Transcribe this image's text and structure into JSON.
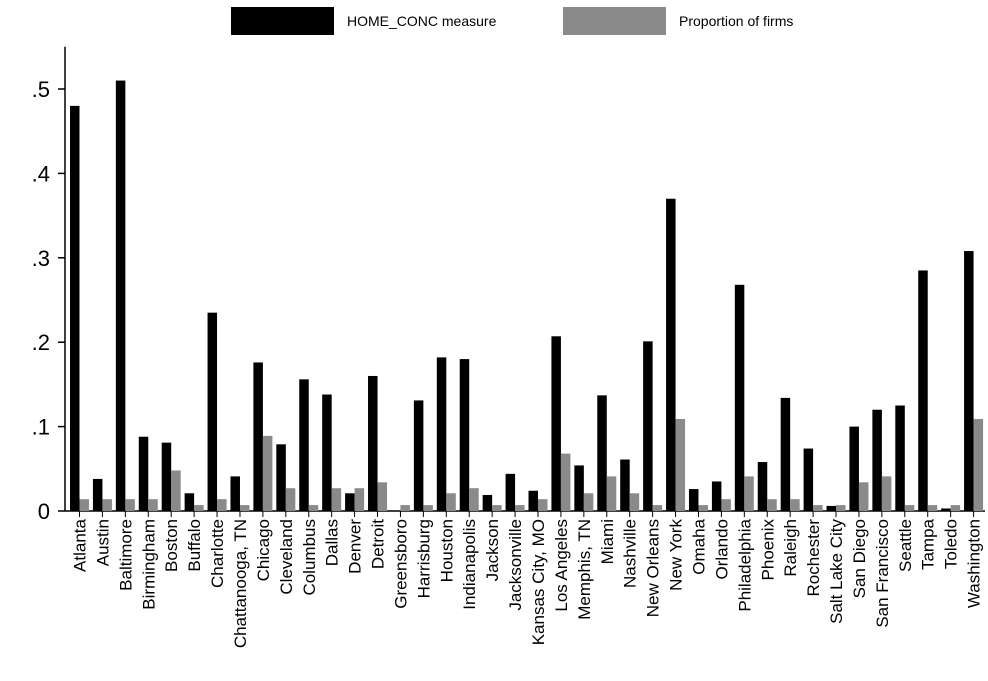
{
  "legend": {
    "items": [
      {
        "label": "HOME_CONC measure",
        "color": "#000000"
      },
      {
        "label": "Proportion of firms",
        "color": "#8a8a8a"
      }
    ]
  },
  "chart_data": {
    "type": "bar",
    "title": "",
    "xlabel": "",
    "ylabel": "",
    "ylim": [
      0,
      0.55
    ],
    "yticks": [
      0,
      0.1,
      0.2,
      0.3,
      0.4,
      0.5
    ],
    "ytick_labels": [
      "0",
      ".1",
      ".2",
      ".3",
      ".4",
      ".5"
    ],
    "grid": false,
    "legend_position": "top",
    "categories": [
      "Atlanta",
      "Austin",
      "Baltimore",
      "Birmingham",
      "Boston",
      "Buffalo",
      "Charlotte",
      "Chattanooga, TN",
      "Chicago",
      "Cleveland",
      "Columbus",
      "Dallas",
      "Denver",
      "Detroit",
      "Greensboro",
      "Harrisburg",
      "Houston",
      "Indianapolis",
      "Jackson",
      "Jacksonville",
      "Kansas City, MO",
      "Los Angeles",
      "Memphis, TN",
      "Miami",
      "Nashville",
      "New Orleans",
      "New York",
      "Omaha",
      "Orlando",
      "Philadelphia",
      "Phoenix",
      "Raleigh",
      "Rochester",
      "Salt Lake City",
      "San Diego",
      "San Francisco",
      "Seattle",
      "Tampa",
      "Toledo",
      "Washington"
    ],
    "series": [
      {
        "name": "HOME_CONC measure",
        "color": "#000000",
        "values": [
          0.48,
          0.038,
          0.51,
          0.088,
          0.081,
          0.021,
          0.235,
          0.041,
          0.176,
          0.079,
          0.156,
          0.138,
          0.021,
          0.16,
          0.0,
          0.131,
          0.182,
          0.18,
          0.019,
          0.044,
          0.024,
          0.207,
          0.054,
          0.137,
          0.061,
          0.201,
          0.37,
          0.026,
          0.035,
          0.268,
          0.058,
          0.134,
          0.074,
          0.006,
          0.1,
          0.12,
          0.125,
          0.285,
          0.003,
          0.308
        ]
      },
      {
        "name": "Proportion of firms",
        "color": "#8a8a8a",
        "values": [
          0.014,
          0.014,
          0.014,
          0.014,
          0.048,
          0.007,
          0.014,
          0.007,
          0.089,
          0.027,
          0.007,
          0.027,
          0.027,
          0.034,
          0.007,
          0.007,
          0.021,
          0.027,
          0.007,
          0.007,
          0.014,
          0.068,
          0.021,
          0.041,
          0.021,
          0.007,
          0.109,
          0.007,
          0.014,
          0.041,
          0.014,
          0.014,
          0.007,
          0.007,
          0.034,
          0.041,
          0.007,
          0.007,
          0.007,
          0.109
        ]
      }
    ]
  }
}
